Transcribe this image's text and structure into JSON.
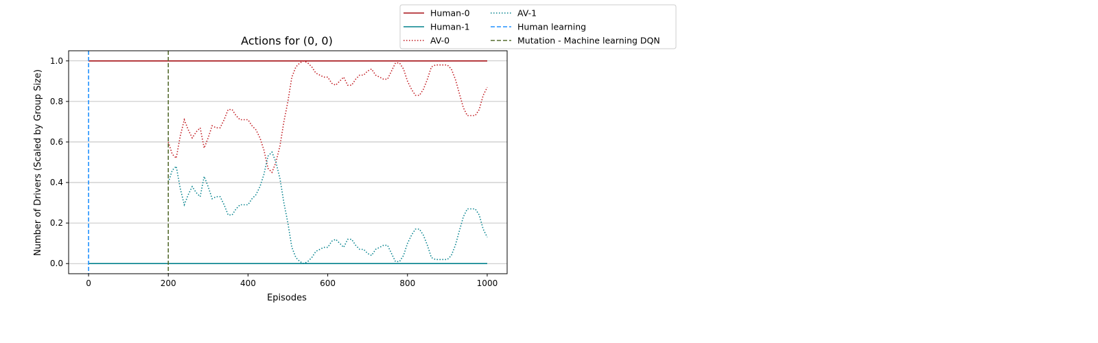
{
  "chart_data": {
    "type": "line",
    "title": "Actions for (0, 0)",
    "xlabel": "Episodes",
    "ylabel": "Number of Drivers (Scaled by Group Size)",
    "xlim": [
      -50,
      1050
    ],
    "ylim": [
      -0.05,
      1.05
    ],
    "xticks": [
      0,
      200,
      400,
      600,
      800,
      1000
    ],
    "yticks": [
      0.0,
      0.2,
      0.4,
      0.6,
      0.8,
      1.0
    ],
    "xtick_labels": [
      "0",
      "200",
      "400",
      "600",
      "800",
      "1000"
    ],
    "ytick_labels": [
      "0.0",
      "0.2",
      "0.4",
      "0.6",
      "0.8",
      "1.0"
    ],
    "grid": "horizontal",
    "legend_position": "outside top-right",
    "series": [
      {
        "name": "Human-0",
        "color": "#a50f15",
        "style": "solid",
        "x": [
          0,
          1000
        ],
        "y": [
          1.0,
          1.0
        ]
      },
      {
        "name": "Human-1",
        "color": "#00808c",
        "style": "solid",
        "x": [
          0,
          1000
        ],
        "y": [
          0.0,
          0.0
        ]
      },
      {
        "name": "AV-0",
        "color": "#c0171d",
        "style": "dotted",
        "x": [
          200,
          210,
          220,
          230,
          240,
          250,
          260,
          270,
          280,
          290,
          300,
          310,
          320,
          330,
          340,
          350,
          360,
          370,
          380,
          390,
          400,
          410,
          420,
          430,
          440,
          450,
          460,
          470,
          480,
          490,
          500,
          510,
          520,
          530,
          540,
          550,
          560,
          570,
          580,
          590,
          600,
          610,
          620,
          630,
          640,
          650,
          660,
          670,
          680,
          690,
          700,
          710,
          720,
          730,
          740,
          750,
          760,
          770,
          780,
          790,
          800,
          810,
          820,
          830,
          840,
          850,
          860,
          870,
          880,
          890,
          900,
          910,
          920,
          930,
          940,
          950,
          960,
          970,
          980,
          990,
          1000
        ],
        "y": [
          0.6,
          0.54,
          0.52,
          0.63,
          0.71,
          0.66,
          0.62,
          0.65,
          0.67,
          0.57,
          0.62,
          0.68,
          0.67,
          0.67,
          0.71,
          0.76,
          0.76,
          0.73,
          0.71,
          0.71,
          0.71,
          0.68,
          0.66,
          0.62,
          0.56,
          0.47,
          0.45,
          0.5,
          0.58,
          0.7,
          0.8,
          0.92,
          0.97,
          0.99,
          1.0,
          0.99,
          0.97,
          0.94,
          0.93,
          0.92,
          0.92,
          0.89,
          0.88,
          0.9,
          0.92,
          0.88,
          0.88,
          0.91,
          0.93,
          0.93,
          0.95,
          0.96,
          0.93,
          0.92,
          0.91,
          0.91,
          0.95,
          0.99,
          0.99,
          0.96,
          0.9,
          0.86,
          0.83,
          0.83,
          0.86,
          0.91,
          0.97,
          0.98,
          0.98,
          0.98,
          0.98,
          0.96,
          0.91,
          0.84,
          0.77,
          0.73,
          0.73,
          0.73,
          0.76,
          0.83,
          0.87
        ]
      },
      {
        "name": "AV-1",
        "color": "#00808c",
        "style": "dotted",
        "x": [
          200,
          210,
          220,
          230,
          240,
          250,
          260,
          270,
          280,
          290,
          300,
          310,
          320,
          330,
          340,
          350,
          360,
          370,
          380,
          390,
          400,
          410,
          420,
          430,
          440,
          450,
          460,
          470,
          480,
          490,
          500,
          510,
          520,
          530,
          540,
          550,
          560,
          570,
          580,
          590,
          600,
          610,
          620,
          630,
          640,
          650,
          660,
          670,
          680,
          690,
          700,
          710,
          720,
          730,
          740,
          750,
          760,
          770,
          780,
          790,
          800,
          810,
          820,
          830,
          840,
          850,
          860,
          870,
          880,
          890,
          900,
          910,
          920,
          930,
          940,
          950,
          960,
          970,
          980,
          990,
          1000
        ],
        "y": [
          0.4,
          0.46,
          0.48,
          0.37,
          0.29,
          0.34,
          0.38,
          0.35,
          0.33,
          0.43,
          0.38,
          0.32,
          0.33,
          0.33,
          0.29,
          0.24,
          0.24,
          0.27,
          0.29,
          0.29,
          0.29,
          0.32,
          0.34,
          0.38,
          0.44,
          0.53,
          0.55,
          0.5,
          0.42,
          0.3,
          0.2,
          0.08,
          0.03,
          0.01,
          0.0,
          0.01,
          0.03,
          0.06,
          0.07,
          0.08,
          0.08,
          0.11,
          0.12,
          0.1,
          0.08,
          0.12,
          0.12,
          0.09,
          0.07,
          0.07,
          0.05,
          0.04,
          0.07,
          0.08,
          0.09,
          0.09,
          0.05,
          0.01,
          0.01,
          0.04,
          0.1,
          0.14,
          0.17,
          0.17,
          0.14,
          0.09,
          0.03,
          0.02,
          0.02,
          0.02,
          0.02,
          0.04,
          0.09,
          0.16,
          0.23,
          0.27,
          0.27,
          0.27,
          0.24,
          0.17,
          0.13
        ]
      },
      {
        "name": "Human learning",
        "color": "#1e90ff",
        "style": "dashed",
        "vline_x": 0
      },
      {
        "name": "Mutation - Machine learning DQN",
        "color": "#556b2f",
        "style": "dashed",
        "vline_x": 200
      }
    ]
  }
}
